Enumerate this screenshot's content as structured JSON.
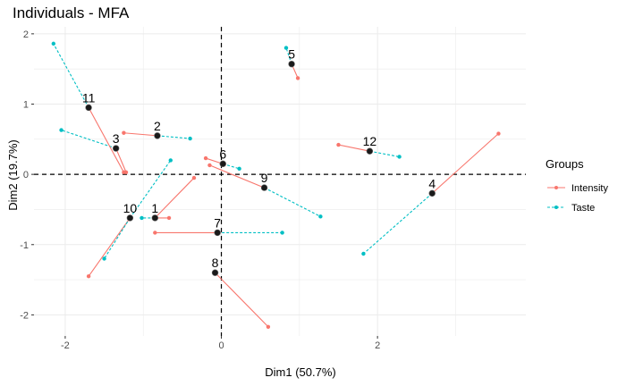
{
  "chart_data": {
    "type": "scatter",
    "title": "Individuals - MFA",
    "xlabel": "Dim1 (50.7%)",
    "ylabel": "Dim2 (19.7%)",
    "xlim": [
      -2.4,
      3.9
    ],
    "ylim": [
      -2.3,
      2.1
    ],
    "x_ticks": [
      -2,
      0,
      2
    ],
    "y_ticks": [
      -2,
      -1,
      0,
      1,
      2
    ],
    "grid": true,
    "legend": {
      "title": "Groups",
      "placement": "right",
      "entries": [
        "Intensity",
        "Taste"
      ]
    },
    "colors": {
      "Intensity": "#F8766D",
      "Taste": "#00BFC4",
      "individual": "#000000"
    },
    "individuals": [
      {
        "label": "1",
        "x": -0.85,
        "y": -0.62,
        "partial": {
          "Intensity": [
            -0.67,
            -0.62
          ],
          "Taste": [
            -1.02,
            -0.62
          ]
        }
      },
      {
        "label": "2",
        "x": -0.82,
        "y": 0.55,
        "partial": {
          "Intensity": [
            -1.25,
            0.59
          ],
          "Taste": [
            -0.4,
            0.51
          ]
        }
      },
      {
        "label": "3",
        "x": -1.35,
        "y": 0.37,
        "partial": {
          "Intensity": [
            -1.22,
            0.03
          ],
          "Taste": [
            -2.05,
            0.63
          ]
        }
      },
      {
        "label": "4",
        "x": 2.7,
        "y": -0.27,
        "partial": {
          "Intensity": [
            3.55,
            0.58
          ],
          "Taste": [
            1.82,
            -1.13
          ]
        }
      },
      {
        "label": "5",
        "x": 0.9,
        "y": 1.57,
        "partial": {
          "Intensity": [
            0.98,
            1.37
          ],
          "Taste": [
            0.83,
            1.8
          ]
        }
      },
      {
        "label": "6",
        "x": 0.02,
        "y": 0.15,
        "partial": {
          "Intensity": [
            -0.2,
            0.23
          ],
          "Taste": [
            0.23,
            0.08
          ]
        }
      },
      {
        "label": "7",
        "x": -0.05,
        "y": -0.83,
        "partial": {
          "Intensity": [
            -0.85,
            -0.83
          ],
          "Taste": [
            0.78,
            -0.83
          ]
        }
      },
      {
        "label": "8",
        "x": -0.08,
        "y": -1.4,
        "partial": {
          "Intensity": [
            0.6,
            -2.17
          ],
          "Taste": [
            -0.08,
            -1.4
          ]
        }
      },
      {
        "label": "9",
        "x": 0.55,
        "y": -0.19,
        "partial": {
          "Intensity": [
            -0.15,
            0.13
          ],
          "Taste": [
            1.27,
            -0.6
          ]
        }
      },
      {
        "label": "10",
        "x": -1.17,
        "y": -0.62,
        "partial": {
          "Intensity": [
            -1.7,
            -1.45
          ],
          "Taste": [
            -0.65,
            0.2
          ]
        }
      },
      {
        "label": "11",
        "x": -1.7,
        "y": 0.95,
        "partial": {
          "Intensity": [
            -1.25,
            0.03
          ],
          "Taste": [
            -2.15,
            1.86
          ]
        }
      },
      {
        "label": "12",
        "x": 1.9,
        "y": 0.33,
        "partial": {
          "Intensity": [
            1.5,
            0.42
          ],
          "Taste": [
            2.28,
            0.25
          ]
        }
      }
    ],
    "extra_segments": [
      {
        "group": "Intensity",
        "from": [
          -0.85,
          -0.62
        ],
        "to": [
          -0.35,
          -0.05
        ]
      },
      {
        "group": "Taste",
        "from": [
          -1.17,
          -0.62
        ],
        "to": [
          -1.5,
          -1.2
        ]
      }
    ]
  }
}
